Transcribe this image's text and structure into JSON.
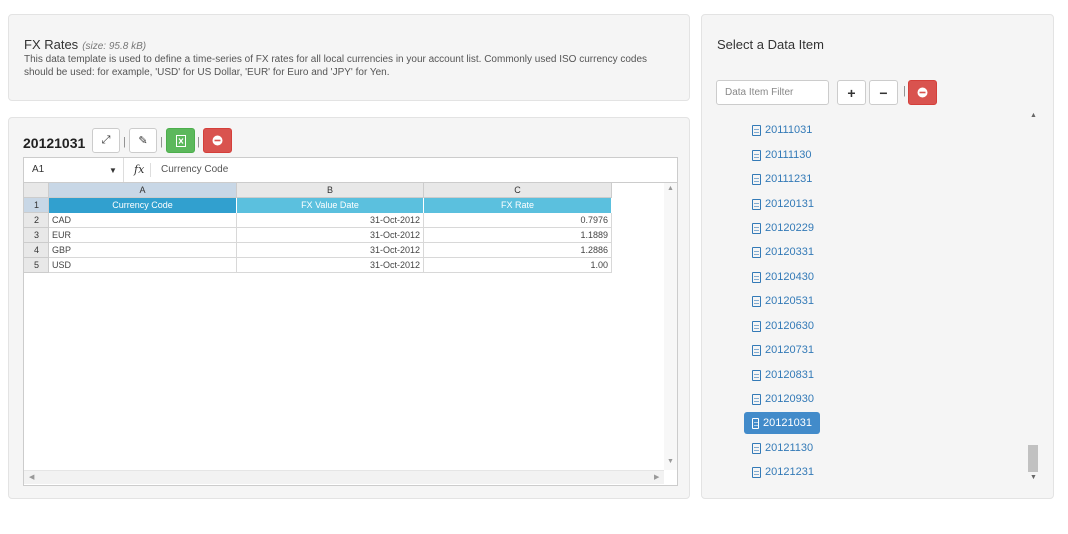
{
  "info": {
    "title": "FX Rates",
    "size": "(size: 95.8 kB)",
    "description": "This data template is used to define a time-series of FX rates for all local currencies in your account list. Commonly used ISO currency codes should be used: for example, 'USD' for US Dollar, 'EUR' for Euro and 'JPY' for Yen."
  },
  "sheet": {
    "title": "20121031",
    "toolbar": {
      "expand_icon": "expand-arrows-icon",
      "edit_icon": "pencil-icon",
      "excel_icon": "excel-file-icon",
      "delete_icon": "minus-circle-icon",
      "separator": "|"
    },
    "formula_bar": {
      "cell_ref": "A1",
      "fx": "fx",
      "value": "Currency Code"
    },
    "columns": [
      "A",
      "B",
      "C"
    ],
    "rows": [
      "1",
      "2",
      "3",
      "4",
      "5"
    ],
    "headers": [
      "Currency Code",
      "FX Value Date",
      "FX Rate"
    ],
    "data": [
      [
        "CAD",
        "31-Oct-2012",
        "0.7976"
      ],
      [
        "EUR",
        "31-Oct-2012",
        "1.1889"
      ],
      [
        "GBP",
        "31-Oct-2012",
        "1.2886"
      ],
      [
        "USD",
        "31-Oct-2012",
        "1.00"
      ]
    ]
  },
  "data_items": {
    "title": "Select a Data Item",
    "filter_placeholder": "Data Item Filter",
    "add_label": "+",
    "remove_label": "−",
    "separator": "|",
    "items": [
      "20111031",
      "20111130",
      "20111231",
      "20120131",
      "20120229",
      "20120331",
      "20120430",
      "20120531",
      "20120630",
      "20120731",
      "20120831",
      "20120930",
      "20121031",
      "20121130",
      "20121231"
    ],
    "selected": "20121031"
  },
  "colors": {
    "header_blue": "#5bc0de",
    "selected_blue": "#428bca",
    "link_blue": "#337ab7",
    "green": "#5cb85c",
    "red": "#d9534f"
  }
}
